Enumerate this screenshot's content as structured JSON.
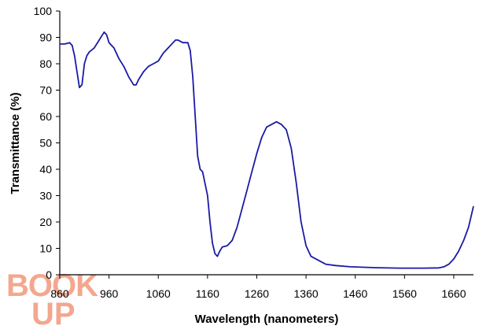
{
  "chart_data": {
    "type": "line",
    "xlabel": "Wavelength (nanometers)",
    "ylabel": "Transmittance (%)",
    "xlim": [
      860,
      1700
    ],
    "ylim": [
      0,
      100
    ],
    "x_ticks": [
      860,
      960,
      1060,
      1160,
      1260,
      1360,
      1460,
      1560,
      1660
    ],
    "y_ticks": [
      0,
      10,
      20,
      30,
      40,
      50,
      60,
      70,
      80,
      90,
      100
    ],
    "grid": false,
    "legend": "none",
    "line_color": "#1a1aa6",
    "series": [
      {
        "x": [
          860,
          870,
          880,
          885,
          890,
          895,
          900,
          905,
          910,
          915,
          920,
          930,
          940,
          950,
          955,
          960,
          970,
          980,
          990,
          1000,
          1010,
          1015,
          1020,
          1030,
          1040,
          1050,
          1060,
          1070,
          1080,
          1090,
          1095,
          1100,
          1110,
          1120,
          1125,
          1130,
          1135,
          1140,
          1145,
          1150,
          1160,
          1165,
          1170,
          1175,
          1180,
          1185,
          1190,
          1200,
          1210,
          1220,
          1230,
          1240,
          1250,
          1260,
          1270,
          1280,
          1290,
          1300,
          1310,
          1320,
          1330,
          1340,
          1350,
          1360,
          1365,
          1370,
          1380,
          1390,
          1400,
          1420,
          1450,
          1500,
          1550,
          1600,
          1630,
          1640,
          1650,
          1660,
          1670,
          1680,
          1690,
          1700
        ],
        "y": [
          87.5,
          87.5,
          88,
          87,
          83,
          77,
          71,
          72,
          80,
          83,
          84.5,
          86,
          89,
          92,
          91,
          88,
          86,
          82,
          79,
          75,
          72,
          72,
          74,
          77,
          79,
          80,
          81,
          84,
          86,
          88,
          89,
          89,
          88,
          88,
          85,
          75,
          60,
          45,
          40,
          39,
          30,
          20,
          12,
          8,
          7,
          9,
          10.5,
          11,
          13,
          18,
          25,
          32,
          39,
          46,
          52,
          56,
          57,
          58,
          57,
          55,
          48,
          35,
          20,
          11,
          9,
          7,
          6,
          5,
          4,
          3.5,
          3,
          2.7,
          2.5,
          2.5,
          2.6,
          3,
          4,
          6,
          9,
          13,
          18,
          26
        ]
      }
    ]
  },
  "watermark": {
    "line1": "BOOK",
    "line2": "UP"
  }
}
